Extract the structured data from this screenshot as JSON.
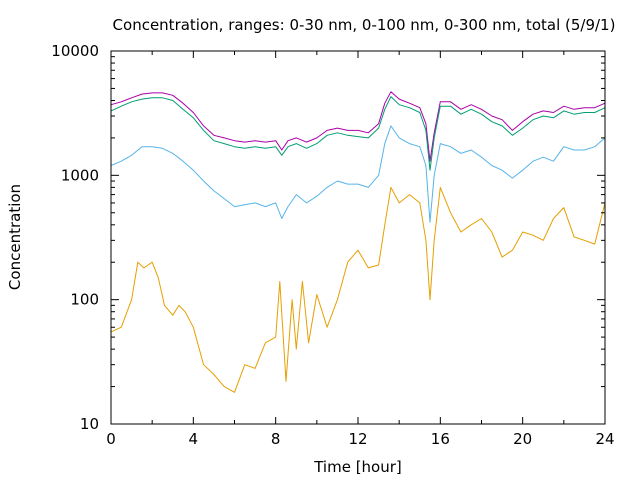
{
  "chart_data": {
    "type": "line",
    "title": "Concentration, ranges: 0-30 nm, 0-100 nm, 0-300 nm, total (5/9/1)",
    "xlabel": "Time [hour]",
    "ylabel": "Concentration",
    "xlim": [
      0,
      24
    ],
    "ylim": [
      10,
      10000
    ],
    "yscale": "log",
    "grid": false,
    "legend": "none",
    "x_ticks": [
      0,
      4,
      8,
      12,
      16,
      20,
      24
    ],
    "x_tick_labels": [
      "0",
      "4",
      "8",
      "12",
      "16",
      "20",
      "24"
    ],
    "y_ticks": [
      10,
      100,
      1000,
      10000
    ],
    "y_tick_labels": [
      "10",
      "100",
      "1000",
      "10000"
    ],
    "series": [
      {
        "color": "#aa00aa",
        "x": [
          0,
          0.5,
          1,
          1.5,
          2,
          2.5,
          3,
          3.5,
          4,
          4.5,
          5,
          5.5,
          6,
          6.5,
          7,
          7.5,
          8,
          8.3,
          8.6,
          9,
          9.5,
          10,
          10.5,
          11,
          11.5,
          12,
          12.5,
          13,
          13.3,
          13.6,
          14,
          14.5,
          15,
          15.3,
          15.5,
          15.7,
          16,
          16.5,
          17,
          17.5,
          18,
          18.5,
          19,
          19.5,
          20,
          20.5,
          21,
          21.5,
          22,
          22.5,
          23,
          23.5,
          24
        ],
        "values": [
          3700,
          3900,
          4200,
          4500,
          4600,
          4600,
          4400,
          3800,
          3200,
          2500,
          2100,
          2000,
          1900,
          1850,
          1900,
          1850,
          1900,
          1600,
          1900,
          2000,
          1850,
          2000,
          2300,
          2400,
          2300,
          2300,
          2200,
          2600,
          3800,
          4700,
          4100,
          3800,
          3500,
          2600,
          1300,
          2200,
          3900,
          3900,
          3400,
          3700,
          3400,
          3000,
          2800,
          2300,
          2700,
          3100,
          3300,
          3200,
          3600,
          3400,
          3500,
          3500,
          3800
        ]
      },
      {
        "color": "#009e73",
        "x": [
          0,
          0.5,
          1,
          1.5,
          2,
          2.5,
          3,
          3.5,
          4,
          4.5,
          5,
          5.5,
          6,
          6.5,
          7,
          7.5,
          8,
          8.3,
          8.6,
          9,
          9.5,
          10,
          10.5,
          11,
          11.5,
          12,
          12.5,
          13,
          13.3,
          13.6,
          14,
          14.5,
          15,
          15.3,
          15.5,
          15.7,
          16,
          16.5,
          17,
          17.5,
          18,
          18.5,
          19,
          19.5,
          20,
          20.5,
          21,
          21.5,
          22,
          22.5,
          23,
          23.5,
          24
        ],
        "values": [
          3300,
          3600,
          3900,
          4100,
          4200,
          4200,
          4000,
          3400,
          2900,
          2300,
          1900,
          1800,
          1700,
          1650,
          1700,
          1650,
          1700,
          1450,
          1700,
          1800,
          1650,
          1800,
          2100,
          2200,
          2100,
          2050,
          2000,
          2400,
          3400,
          4300,
          3700,
          3500,
          3200,
          2300,
          1100,
          2000,
          3600,
          3600,
          3100,
          3400,
          3100,
          2700,
          2500,
          2100,
          2400,
          2800,
          3000,
          2900,
          3300,
          3100,
          3200,
          3200,
          3500
        ]
      },
      {
        "color": "#56b4e9",
        "x": [
          0,
          0.5,
          1,
          1.5,
          2,
          2.5,
          3,
          3.5,
          4,
          4.5,
          5,
          5.5,
          6,
          6.5,
          7,
          7.5,
          8,
          8.3,
          8.6,
          9,
          9.5,
          10,
          10.5,
          11,
          11.5,
          12,
          12.5,
          13,
          13.3,
          13.6,
          14,
          14.5,
          15,
          15.3,
          15.5,
          15.7,
          16,
          16.5,
          17,
          17.5,
          18,
          18.5,
          19,
          19.5,
          20,
          20.5,
          21,
          21.5,
          22,
          22.5,
          23,
          23.5,
          24
        ],
        "values": [
          1200,
          1300,
          1450,
          1700,
          1700,
          1650,
          1500,
          1300,
          1100,
          900,
          750,
          650,
          560,
          580,
          600,
          560,
          600,
          450,
          560,
          700,
          600,
          680,
          800,
          900,
          850,
          850,
          800,
          1000,
          1800,
          2500,
          2000,
          1800,
          1700,
          1200,
          420,
          1000,
          1800,
          1700,
          1500,
          1600,
          1400,
          1200,
          1100,
          950,
          1100,
          1300,
          1400,
          1300,
          1700,
          1600,
          1600,
          1700,
          2000
        ]
      },
      {
        "color": "#e69f00",
        "x": [
          0,
          0.5,
          1,
          1.3,
          1.6,
          2,
          2.3,
          2.6,
          3,
          3.3,
          3.6,
          4,
          4.5,
          5,
          5.5,
          6,
          6.5,
          7,
          7.5,
          8,
          8.2,
          8.5,
          8.8,
          9,
          9.3,
          9.6,
          10,
          10.5,
          11,
          11.5,
          12,
          12.5,
          13,
          13.3,
          13.6,
          14,
          14.5,
          15,
          15.3,
          15.5,
          15.7,
          16,
          16.5,
          17,
          17.5,
          18,
          18.5,
          19,
          19.5,
          20,
          20.5,
          21,
          21.5,
          22,
          22.5,
          23,
          23.5,
          24
        ],
        "values": [
          55,
          60,
          100,
          200,
          180,
          200,
          150,
          90,
          75,
          90,
          80,
          60,
          30,
          25,
          20,
          18,
          30,
          28,
          45,
          50,
          140,
          22,
          100,
          40,
          140,
          45,
          110,
          60,
          100,
          200,
          250,
          180,
          190,
          400,
          800,
          600,
          700,
          600,
          300,
          100,
          300,
          800,
          500,
          350,
          400,
          450,
          350,
          220,
          250,
          350,
          330,
          300,
          450,
          550,
          320,
          300,
          280,
          600
        ]
      }
    ]
  }
}
